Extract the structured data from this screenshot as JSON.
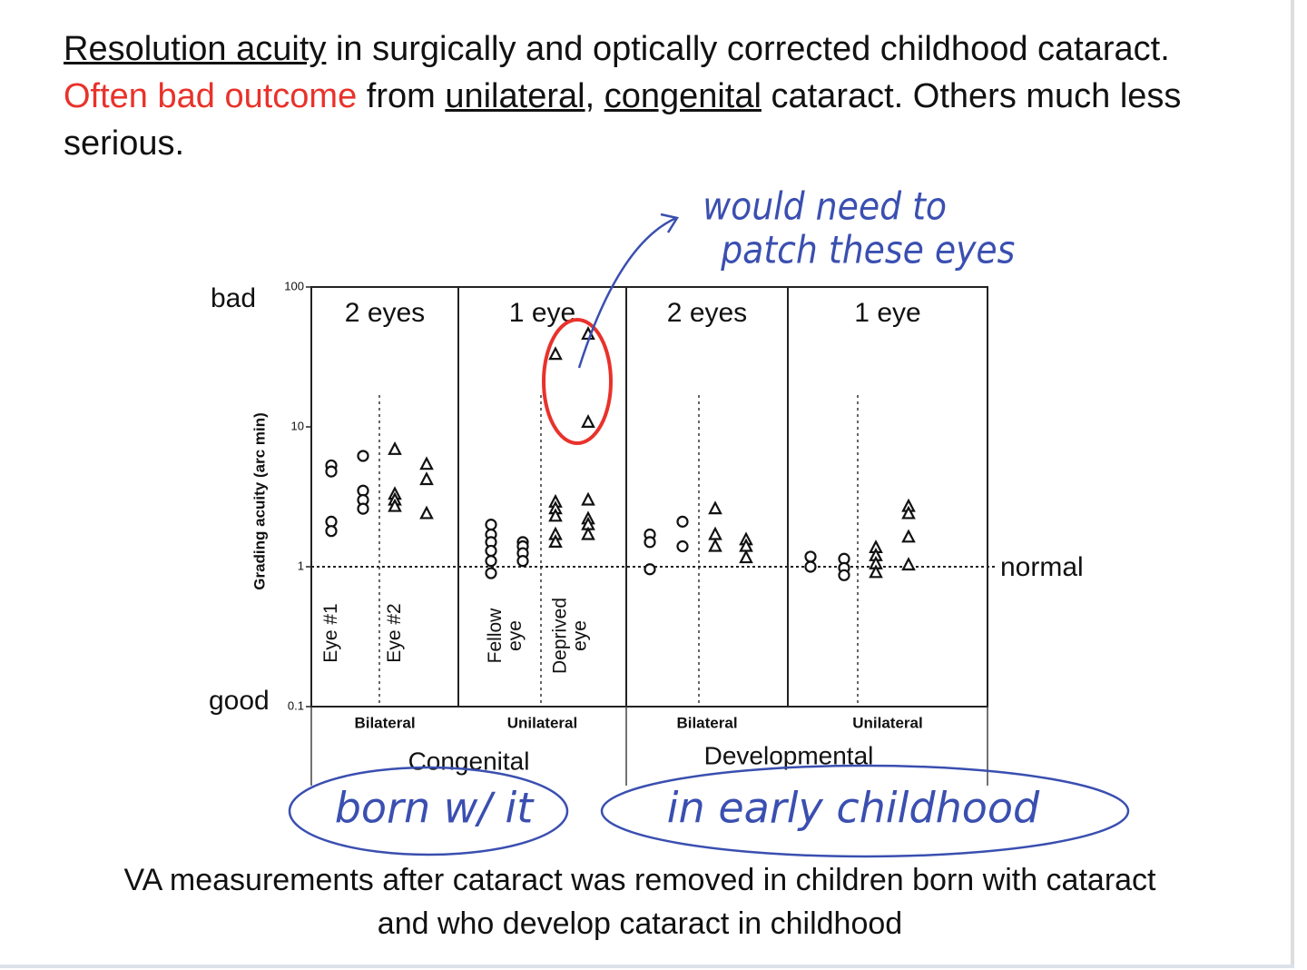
{
  "heading": [
    {
      "text": "Resolution acuity",
      "underline": true
    },
    {
      "text": " in surgically and optically corrected childhood cataract.  "
    },
    {
      "text": "Often bad outcome",
      "color": "#e8322b"
    },
    {
      "text": " from "
    },
    {
      "text": "unilateral",
      "underline": true
    },
    {
      "text": ", "
    },
    {
      "text": "congenital",
      "underline": true
    },
    {
      "text": " cataract. Others much less serious."
    }
  ],
  "caption": [
    "VA measurements after cataract was removed in children born with cataract",
    "and who develop cataract in childhood"
  ],
  "handwritten": {
    "note": [
      "would need to",
      "patch these eyes"
    ],
    "congenital_note": "born w/ it",
    "developmental_note": "in early childhood",
    "color": "#3a4fb0"
  },
  "chart_data": {
    "type": "scatter",
    "ylabel": "Grading acuity (arc min)",
    "log_y": true,
    "ylim": [
      0.1,
      100
    ],
    "yticks": [
      0.1,
      1,
      10,
      100
    ],
    "top_label": "bad",
    "bottom_label": "good",
    "reference_label": "normal",
    "groups": [
      {
        "name": "Congenital",
        "panels": [
          0,
          1
        ]
      },
      {
        "name": "Developmental",
        "panels": [
          2,
          3
        ]
      }
    ],
    "panels": [
      {
        "title": "2 eyes",
        "subgroup": "Bilateral",
        "columns": [
          {
            "label": "Eye #1",
            "marker": "circle",
            "strips": [
              [
                5.3,
                4.8,
                2.1,
                1.8
              ],
              [
                6.2,
                3.5,
                3.0,
                2.6
              ]
            ]
          },
          {
            "label": "Eye #2",
            "marker": "triangle",
            "strips": [
              [
                6.9,
                3.3,
                3.0,
                2.7
              ],
              [
                5.4,
                4.2,
                2.4
              ]
            ]
          }
        ]
      },
      {
        "title": "1 eye",
        "subgroup": "Unilateral",
        "columns": [
          {
            "label": [
              "Fellow",
              "eye"
            ],
            "marker": "circle",
            "strips": [
              [
                2.0,
                1.7,
                1.5,
                1.3,
                1.1,
                0.9
              ],
              [
                1.5,
                1.4,
                1.25,
                1.1
              ]
            ]
          },
          {
            "label": [
              "Deprived",
              "eye"
            ],
            "marker": "triangle",
            "strips": [
              [
                33,
                2.9,
                2.6,
                2.3,
                1.7,
                1.5
              ],
              [
                46,
                10.8,
                3.0,
                2.2,
                2.0,
                1.7
              ]
            ]
          }
        ]
      },
      {
        "title": "2 eyes",
        "subgroup": "Bilateral",
        "columns": [
          {
            "label": null,
            "marker": "circle",
            "strips": [
              [
                1.7,
                1.5,
                0.96
              ],
              [
                2.1,
                1.4
              ]
            ]
          },
          {
            "label": null,
            "marker": "triangle",
            "strips": [
              [
                2.6,
                1.7,
                1.4
              ],
              [
                1.56,
                1.4,
                1.16
              ]
            ]
          }
        ]
      },
      {
        "title": "1 eye",
        "subgroup": "Unilateral",
        "columns": [
          {
            "label": null,
            "marker": "circle",
            "strips": [
              [
                1.18,
                1.0
              ],
              [
                1.14,
                0.98,
                0.87
              ]
            ]
          },
          {
            "label": null,
            "marker": "triangle",
            "strips": [
              [
                1.37,
                1.2,
                1.05,
                0.91
              ],
              [
                2.7,
                2.4,
                1.63,
                1.03
              ]
            ]
          }
        ]
      }
    ],
    "highlight_color": "#e8322b"
  }
}
